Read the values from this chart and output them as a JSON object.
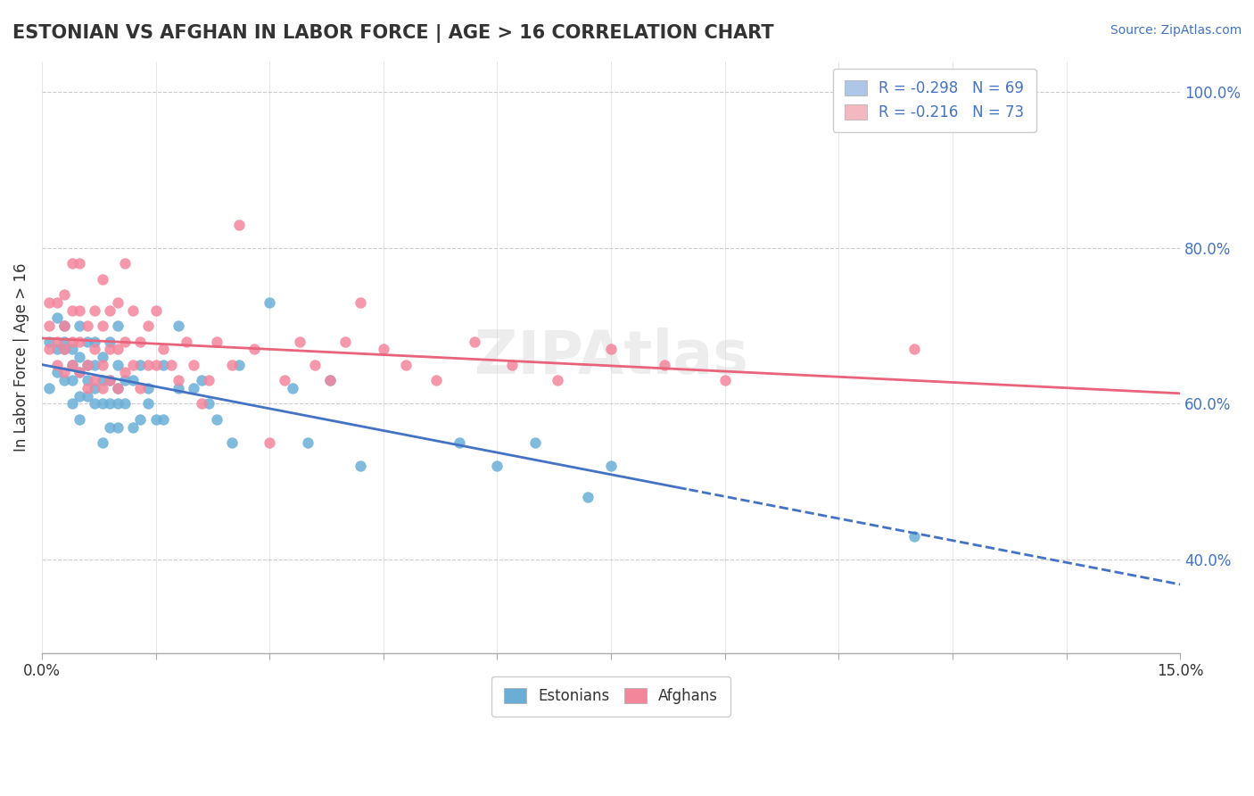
{
  "title": "ESTONIAN VS AFGHAN IN LABOR FORCE | AGE > 16 CORRELATION CHART",
  "source_text": "Source: ZipAtlas.com",
  "xlabel": "",
  "ylabel": "In Labor Force | Age > 16",
  "xlim": [
    0.0,
    0.15
  ],
  "ylim": [
    0.28,
    1.04
  ],
  "xticks": [
    0.0,
    0.015,
    0.03,
    0.045,
    0.06,
    0.075,
    0.09,
    0.105,
    0.12,
    0.135,
    0.15
  ],
  "xtick_labels": [
    "0.0%",
    "",
    "",
    "",
    "",
    "",
    "",
    "",
    "",
    "",
    "15.0%"
  ],
  "yticks": [
    0.4,
    0.6,
    0.8,
    1.0
  ],
  "ytick_labels": [
    "40.0%",
    "60.0%",
    "80.0%",
    "100.0%"
  ],
  "legend_entries": [
    {
      "label": "R = -0.298   N = 69",
      "color": "#aec6e8"
    },
    {
      "label": "R = -0.216   N = 73",
      "color": "#f4b8c1"
    }
  ],
  "estonian_color": "#6aaed6",
  "afghan_color": "#f4869c",
  "estonian_line_color": "#4472c4",
  "afghan_line_color": "#e8637b",
  "watermark": "ZIPAtlas",
  "estonian_R": -0.298,
  "estonian_N": 69,
  "afghan_R": -0.216,
  "afghan_N": 73,
  "estonian_scatter": {
    "x": [
      0.001,
      0.001,
      0.002,
      0.002,
      0.002,
      0.003,
      0.003,
      0.003,
      0.003,
      0.004,
      0.004,
      0.004,
      0.004,
      0.005,
      0.005,
      0.005,
      0.005,
      0.005,
      0.006,
      0.006,
      0.006,
      0.006,
      0.007,
      0.007,
      0.007,
      0.007,
      0.008,
      0.008,
      0.008,
      0.008,
      0.009,
      0.009,
      0.009,
      0.009,
      0.01,
      0.01,
      0.01,
      0.01,
      0.01,
      0.011,
      0.011,
      0.012,
      0.012,
      0.013,
      0.013,
      0.014,
      0.014,
      0.015,
      0.016,
      0.016,
      0.018,
      0.018,
      0.02,
      0.021,
      0.022,
      0.023,
      0.025,
      0.026,
      0.03,
      0.033,
      0.035,
      0.038,
      0.042,
      0.055,
      0.06,
      0.065,
      0.072,
      0.075,
      0.115
    ],
    "y": [
      0.62,
      0.68,
      0.64,
      0.67,
      0.71,
      0.63,
      0.67,
      0.68,
      0.7,
      0.6,
      0.63,
      0.65,
      0.67,
      0.58,
      0.61,
      0.64,
      0.66,
      0.7,
      0.61,
      0.63,
      0.65,
      0.68,
      0.6,
      0.62,
      0.65,
      0.68,
      0.55,
      0.6,
      0.63,
      0.66,
      0.57,
      0.6,
      0.63,
      0.68,
      0.57,
      0.6,
      0.62,
      0.65,
      0.7,
      0.6,
      0.63,
      0.57,
      0.63,
      0.58,
      0.65,
      0.6,
      0.62,
      0.58,
      0.58,
      0.65,
      0.62,
      0.7,
      0.62,
      0.63,
      0.6,
      0.58,
      0.55,
      0.65,
      0.73,
      0.62,
      0.55,
      0.63,
      0.52,
      0.55,
      0.52,
      0.55,
      0.48,
      0.52,
      0.43
    ]
  },
  "afghan_scatter": {
    "x": [
      0.001,
      0.001,
      0.001,
      0.002,
      0.002,
      0.002,
      0.003,
      0.003,
      0.003,
      0.003,
      0.004,
      0.004,
      0.004,
      0.004,
      0.005,
      0.005,
      0.005,
      0.005,
      0.006,
      0.006,
      0.006,
      0.007,
      0.007,
      0.007,
      0.008,
      0.008,
      0.008,
      0.008,
      0.009,
      0.009,
      0.009,
      0.01,
      0.01,
      0.01,
      0.011,
      0.011,
      0.011,
      0.012,
      0.012,
      0.013,
      0.013,
      0.014,
      0.014,
      0.015,
      0.015,
      0.016,
      0.017,
      0.018,
      0.019,
      0.02,
      0.021,
      0.022,
      0.023,
      0.025,
      0.026,
      0.028,
      0.03,
      0.032,
      0.034,
      0.036,
      0.038,
      0.04,
      0.042,
      0.045,
      0.048,
      0.052,
      0.057,
      0.062,
      0.068,
      0.075,
      0.082,
      0.09,
      0.115
    ],
    "y": [
      0.67,
      0.7,
      0.73,
      0.65,
      0.68,
      0.73,
      0.64,
      0.67,
      0.7,
      0.74,
      0.65,
      0.68,
      0.72,
      0.78,
      0.64,
      0.68,
      0.72,
      0.78,
      0.62,
      0.65,
      0.7,
      0.63,
      0.67,
      0.72,
      0.62,
      0.65,
      0.7,
      0.76,
      0.63,
      0.67,
      0.72,
      0.62,
      0.67,
      0.73,
      0.64,
      0.68,
      0.78,
      0.65,
      0.72,
      0.62,
      0.68,
      0.65,
      0.7,
      0.65,
      0.72,
      0.67,
      0.65,
      0.63,
      0.68,
      0.65,
      0.6,
      0.63,
      0.68,
      0.65,
      0.83,
      0.67,
      0.55,
      0.63,
      0.68,
      0.65,
      0.63,
      0.68,
      0.73,
      0.67,
      0.65,
      0.63,
      0.68,
      0.65,
      0.63,
      0.67,
      0.65,
      0.63,
      0.67
    ]
  }
}
